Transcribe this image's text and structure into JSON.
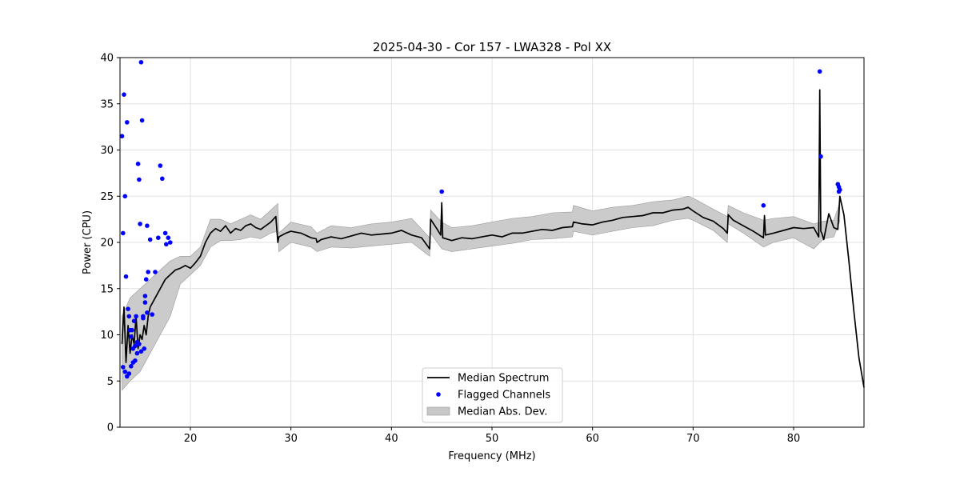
{
  "chart_data": {
    "type": "line",
    "title": "2025-04-30 - Cor 157 - LWA328 - Pol XX",
    "xlabel": "Frequency (MHz)",
    "ylabel": "Power (CPU)",
    "xlim": [
      13.0,
      87.0
    ],
    "ylim": [
      0,
      40
    ],
    "xticks": [
      20,
      30,
      40,
      50,
      60,
      70,
      80
    ],
    "yticks": [
      0,
      5,
      10,
      15,
      20,
      25,
      30,
      35,
      40
    ],
    "grid": true,
    "legend_position": "lower-center",
    "colors": {
      "median": "#000000",
      "flagged": "#0000ff",
      "mad": "#c8c8c8"
    },
    "series": [
      {
        "name": "Median Spectrum",
        "kind": "line",
        "x": [
          13.2,
          13.4,
          13.6,
          13.8,
          14.0,
          14.2,
          14.4,
          14.6,
          14.8,
          15.0,
          15.2,
          15.4,
          15.6,
          15.8,
          16.0,
          16.5,
          17.0,
          17.5,
          18.0,
          18.5,
          19.0,
          19.5,
          20.0,
          20.5,
          21.0,
          21.5,
          22.0,
          22.5,
          23.0,
          23.5,
          24.0,
          24.5,
          25.0,
          25.5,
          26.0,
          26.5,
          27.0,
          27.5,
          28.0,
          28.5,
          28.7,
          28.8,
          29.5,
          30.0,
          31.0,
          32.0,
          32.5,
          32.6,
          33.0,
          34.0,
          35.0,
          36.0,
          37.0,
          38.0,
          39.0,
          40.0,
          41.0,
          42.0,
          43.0,
          43.8,
          43.9,
          44.5,
          44.9,
          45.0,
          45.1,
          46.0,
          47.0,
          48.0,
          49.0,
          50.0,
          51.0,
          52.0,
          53.0,
          54.0,
          55.0,
          56.0,
          57.0,
          58.0,
          58.1,
          59.0,
          60.0,
          61.0,
          62.0,
          63.0,
          64.0,
          65.0,
          66.0,
          67.0,
          68.0,
          69.0,
          69.5,
          70.0,
          71.0,
          72.0,
          73.0,
          73.4,
          73.5,
          74.0,
          75.0,
          76.0,
          77.0,
          77.1,
          77.2,
          78.0,
          79.0,
          80.0,
          81.0,
          82.0,
          82.5,
          82.6,
          82.7,
          82.8,
          83.0,
          83.5,
          84.0,
          84.4,
          84.6,
          85.0,
          85.5,
          86.0,
          86.5,
          87.0
        ],
        "values": [
          9.0,
          13.0,
          7.0,
          11.0,
          8.0,
          10.0,
          9.0,
          12.0,
          8.5,
          10.0,
          9.5,
          11.0,
          10.0,
          12.0,
          13.0,
          14.0,
          15.0,
          16.0,
          16.5,
          17.0,
          17.2,
          17.5,
          17.2,
          17.8,
          18.5,
          20.0,
          21.0,
          21.5,
          21.2,
          21.8,
          21.0,
          21.5,
          21.3,
          21.8,
          22.0,
          21.6,
          21.4,
          21.8,
          22.2,
          22.8,
          20.0,
          20.6,
          21.0,
          21.2,
          21.0,
          20.5,
          20.4,
          20.0,
          20.3,
          20.6,
          20.4,
          20.7,
          21.0,
          20.8,
          20.9,
          21.0,
          21.3,
          20.8,
          20.5,
          19.3,
          22.5,
          21.5,
          20.8,
          24.3,
          20.5,
          20.2,
          20.5,
          20.4,
          20.6,
          20.8,
          20.6,
          21.0,
          21.0,
          21.2,
          21.4,
          21.3,
          21.6,
          21.7,
          22.2,
          22.0,
          21.9,
          22.2,
          22.4,
          22.7,
          22.8,
          22.9,
          23.2,
          23.2,
          23.5,
          23.6,
          23.8,
          23.4,
          22.7,
          22.3,
          21.5,
          21.0,
          23.0,
          22.4,
          21.8,
          21.2,
          20.5,
          22.9,
          20.8,
          21.0,
          21.3,
          21.6,
          21.5,
          21.6,
          20.6,
          36.5,
          21.2,
          21.0,
          20.3,
          23.1,
          21.6,
          21.4,
          25.0,
          23.0,
          18.0,
          12.5,
          7.5,
          4.3
        ]
      },
      {
        "name": "Flagged Channels",
        "kind": "scatter",
        "x": [
          13.2,
          13.3,
          13.4,
          13.5,
          13.6,
          13.7,
          13.8,
          13.9,
          14.0,
          14.1,
          14.2,
          14.3,
          14.4,
          14.5,
          14.6,
          14.7,
          14.8,
          14.9,
          15.0,
          15.1,
          15.2,
          15.3,
          15.4,
          15.5,
          15.6,
          15.7,
          15.8,
          16.0,
          16.2,
          16.5,
          16.8,
          17.0,
          17.2,
          17.5,
          17.6,
          17.8,
          18.0,
          13.3,
          13.5,
          13.7,
          13.9,
          14.1,
          14.3,
          14.5,
          14.7,
          14.9,
          15.1,
          15.3,
          15.5,
          15.7,
          45.0,
          77.0,
          82.6,
          82.7,
          84.4,
          84.5,
          84.6,
          84.5
        ],
        "values": [
          31.5,
          21.0,
          36.0,
          25.0,
          16.3,
          33.0,
          12.8,
          12.0,
          10.5,
          9.8,
          10.5,
          8.5,
          11.5,
          8.8,
          12.0,
          8.0,
          28.5,
          26.8,
          22.0,
          39.5,
          33.2,
          12.0,
          8.5,
          14.2,
          16.0,
          12.4,
          16.8,
          20.3,
          12.2,
          16.8,
          20.5,
          28.3,
          26.9,
          21.0,
          19.8,
          20.5,
          20.0,
          6.5,
          6.0,
          5.5,
          5.8,
          6.6,
          7.0,
          7.2,
          9.2,
          9.0,
          8.2,
          11.8,
          13.5,
          21.8,
          25.5,
          24.0,
          38.5,
          29.3,
          26.3,
          26.0,
          25.7,
          25.5
        ]
      },
      {
        "name": "Median Abs. Dev.",
        "kind": "band",
        "x": [
          13.2,
          14.0,
          15.0,
          16.0,
          17.0,
          18.0,
          19.0,
          20.0,
          21.0,
          22.0,
          23.0,
          24.0,
          25.0,
          26.0,
          27.0,
          28.0,
          28.7,
          28.8,
          30.0,
          32.0,
          32.6,
          34.0,
          36.0,
          38.0,
          40.0,
          42.0,
          43.8,
          43.9,
          45.0,
          46.0,
          48.0,
          50.0,
          52.0,
          54.0,
          56.0,
          58.0,
          58.1,
          60.0,
          62.0,
          64.0,
          66.0,
          68.0,
          69.5,
          70.0,
          72.0,
          73.4,
          73.5,
          75.0,
          77.0,
          78.0,
          80.0,
          82.0,
          83.0,
          84.0,
          84.6
        ],
        "lower": [
          4.0,
          5.0,
          6.0,
          8.0,
          10.0,
          12.0,
          15.5,
          16.5,
          17.5,
          19.5,
          20.2,
          20.2,
          20.3,
          20.6,
          20.4,
          21.0,
          21.2,
          19.0,
          20.0,
          19.5,
          19.0,
          19.5,
          19.4,
          19.6,
          19.8,
          20.0,
          18.5,
          21.0,
          19.3,
          19.0,
          19.3,
          19.6,
          19.9,
          20.3,
          20.4,
          20.6,
          21.2,
          20.8,
          21.2,
          21.6,
          21.8,
          22.4,
          22.6,
          22.4,
          21.3,
          20.0,
          22.0,
          21.0,
          19.5,
          20.0,
          20.5,
          19.3,
          20.4,
          20.6,
          22.3
        ],
        "upper": [
          12.0,
          14.0,
          15.0,
          16.0,
          17.0,
          18.0,
          18.5,
          18.5,
          19.5,
          22.5,
          22.5,
          22.0,
          22.5,
          23.0,
          22.5,
          23.5,
          24.2,
          21.0,
          22.2,
          21.7,
          21.0,
          21.8,
          21.6,
          22.0,
          22.2,
          22.6,
          20.5,
          23.5,
          22.2,
          21.6,
          21.8,
          22.2,
          22.6,
          22.8,
          23.2,
          23.3,
          24.0,
          23.4,
          23.8,
          24.0,
          24.4,
          24.6,
          25.0,
          24.8,
          23.6,
          22.8,
          24.0,
          23.2,
          22.4,
          22.6,
          22.8,
          22.0,
          22.3,
          22.4,
          24.3
        ]
      }
    ],
    "legend": [
      {
        "label": "Median Spectrum",
        "kind": "line"
      },
      {
        "label": "Flagged Channels",
        "kind": "scatter"
      },
      {
        "label": "Median Abs. Dev.",
        "kind": "band"
      }
    ]
  }
}
